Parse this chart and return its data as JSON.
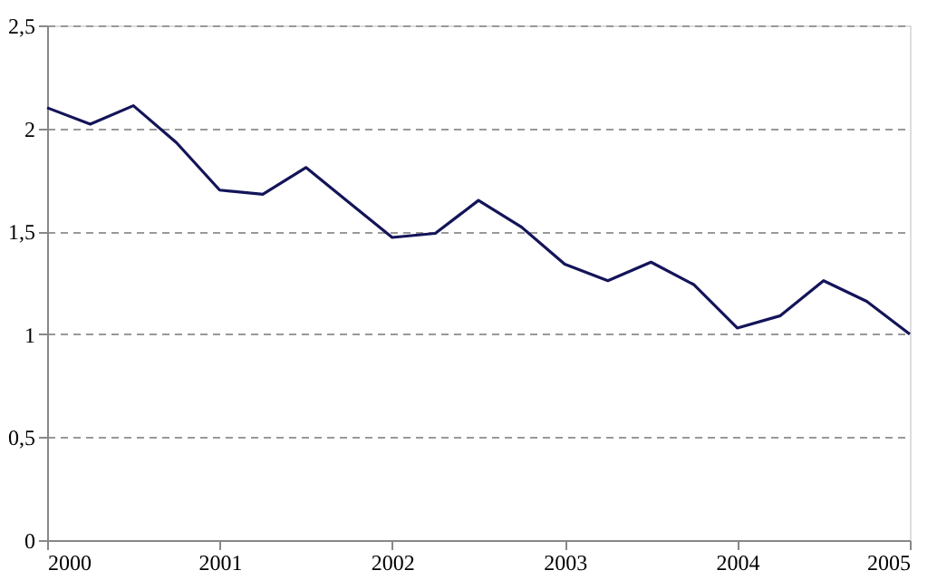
{
  "chart_data": {
    "type": "line",
    "x": [
      2000,
      2000.25,
      2000.5,
      2000.75,
      2001,
      2001.25,
      2001.5,
      2001.75,
      2002,
      2002.25,
      2002.5,
      2002.75,
      2003,
      2003.25,
      2003.5,
      2003.75,
      2004,
      2004.25,
      2004.5,
      2004.75,
      2005
    ],
    "series": [
      {
        "color": "#14145a",
        "values": [
          2.1,
          2.02,
          2.11,
          1.93,
          1.7,
          1.68,
          1.81,
          1.64,
          1.47,
          1.49,
          1.65,
          1.52,
          1.34,
          1.26,
          1.35,
          1.24,
          1.03,
          1.09,
          1.26,
          1.16,
          1.0
        ]
      }
    ],
    "xlim": [
      2000,
      2005
    ],
    "xticks": [
      2000,
      2001,
      2002,
      2003,
      2004,
      2005
    ],
    "ylim": [
      0,
      2.5
    ],
    "yticks": [
      0,
      {
        "value": 0.5,
        "label": "0,5"
      },
      1,
      {
        "value": 1.5,
        "label": "1,5"
      },
      2,
      {
        "value": 2.5,
        "label": "2,5"
      }
    ],
    "grid": "y",
    "marker": "none",
    "line_style": "solid"
  }
}
